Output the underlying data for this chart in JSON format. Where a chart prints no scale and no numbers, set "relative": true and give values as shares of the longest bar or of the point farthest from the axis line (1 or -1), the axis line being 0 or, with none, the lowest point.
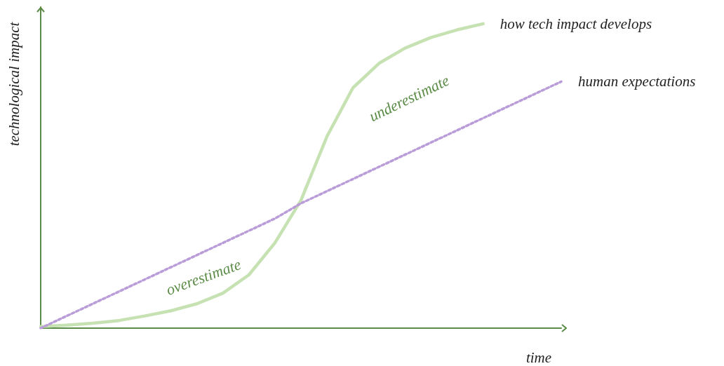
{
  "chart_data": {
    "type": "line",
    "relative": true,
    "xlabel": "time",
    "ylabel": "technological impact",
    "categories": [
      null,
      null,
      null,
      null,
      null,
      null,
      null,
      null,
      null,
      null,
      null,
      null,
      null,
      null,
      null,
      null,
      null,
      null,
      null,
      null,
      null
    ],
    "series": [
      {
        "name": "how tech impact develops",
        "color": "#c6e1b2",
        "line_style": "solid",
        "values": [
          0.005,
          0.01,
          0.016,
          0.025,
          0.04,
          0.057,
          0.08,
          0.115,
          0.175,
          0.28,
          0.42,
          0.63,
          0.79,
          0.87,
          0.92,
          0.955,
          0.98,
          1,
          null,
          null,
          null
        ]
      },
      {
        "name": "human expectations",
        "color": "#b99cd8",
        "line_style": "dotted",
        "values": [
          0,
          0.04,
          0.08,
          0.12,
          0.16,
          0.2,
          0.24,
          0.28,
          0.32,
          0.36,
          0.41,
          0.45,
          0.49,
          0.53,
          0.57,
          0.61,
          0.65,
          0.69,
          0.73,
          0.77,
          0.81
        ]
      }
    ],
    "annotations": [
      "overestimate",
      "underestimate"
    ],
    "grid": false,
    "legend": false,
    "marker": "none"
  }
}
